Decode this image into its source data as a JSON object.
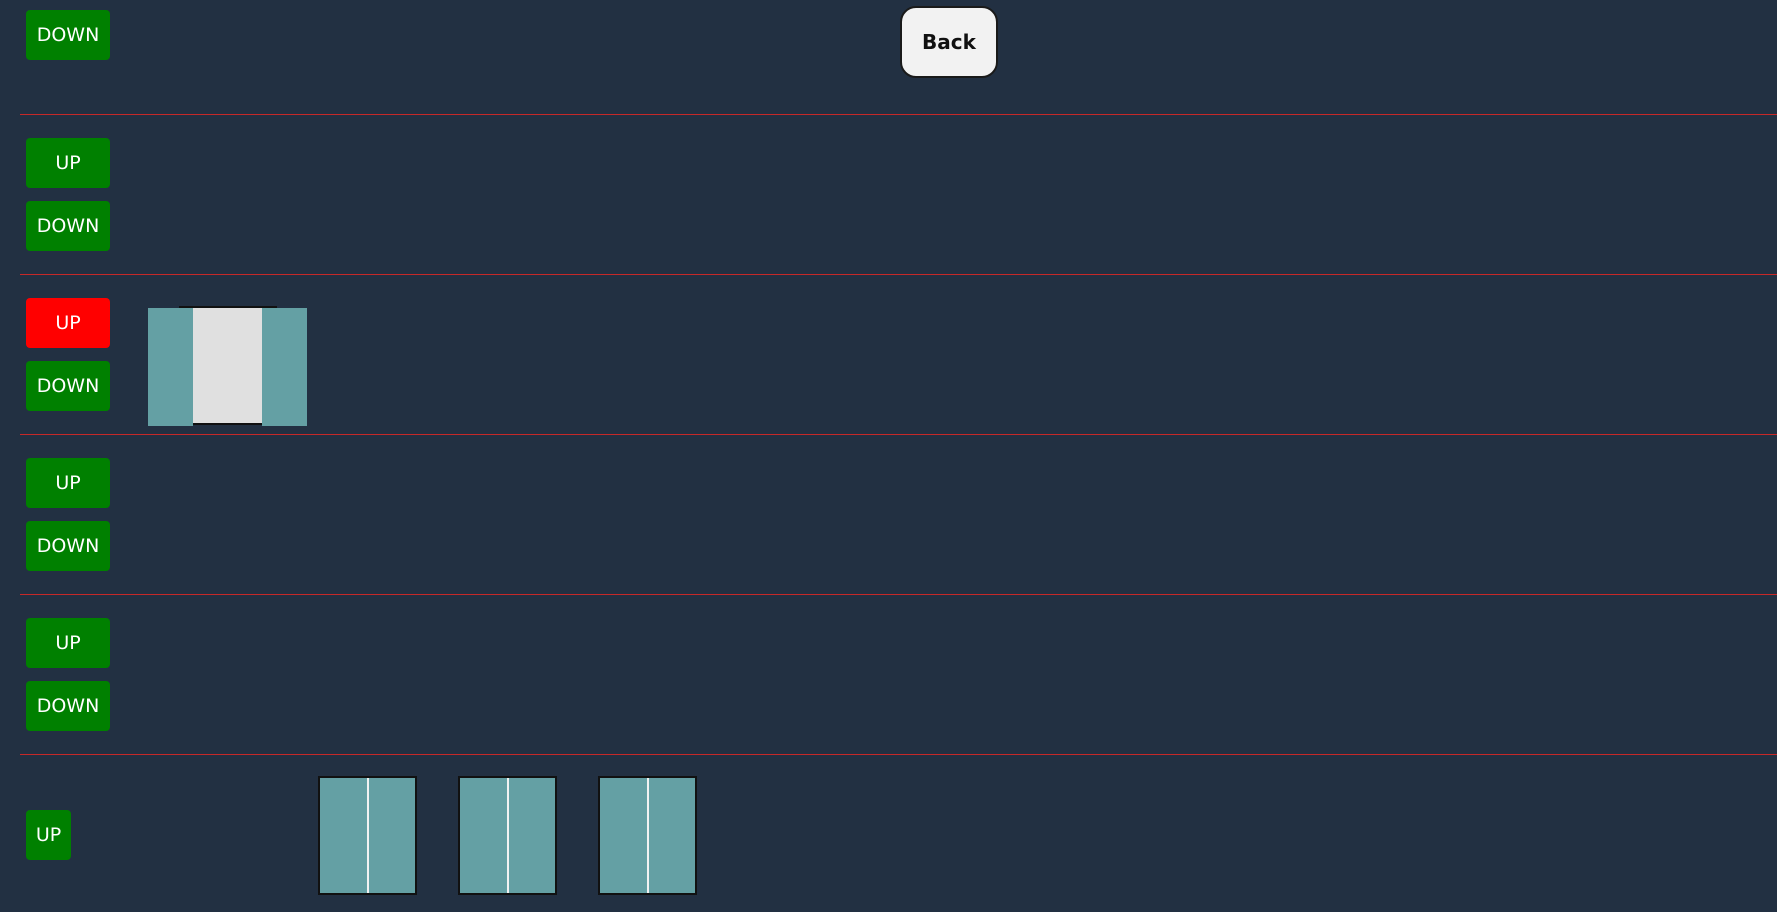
{
  "header": {
    "back_label": "Back"
  },
  "floors": [
    {
      "down_label": "DOWN"
    },
    {
      "up_label": "UP",
      "down_label": "DOWN"
    },
    {
      "up_label": "UP",
      "down_label": "DOWN"
    },
    {
      "up_label": "UP",
      "down_label": "DOWN"
    },
    {
      "up_label": "UP",
      "down_label": "DOWN"
    },
    {
      "up_label": "UP"
    }
  ],
  "colors": {
    "background": "#223042",
    "button_idle": "#008000",
    "button_active": "#ff0000",
    "divider": "#c62828",
    "door": "#64a0a4",
    "elevator_interior": "#e0e0e0"
  }
}
